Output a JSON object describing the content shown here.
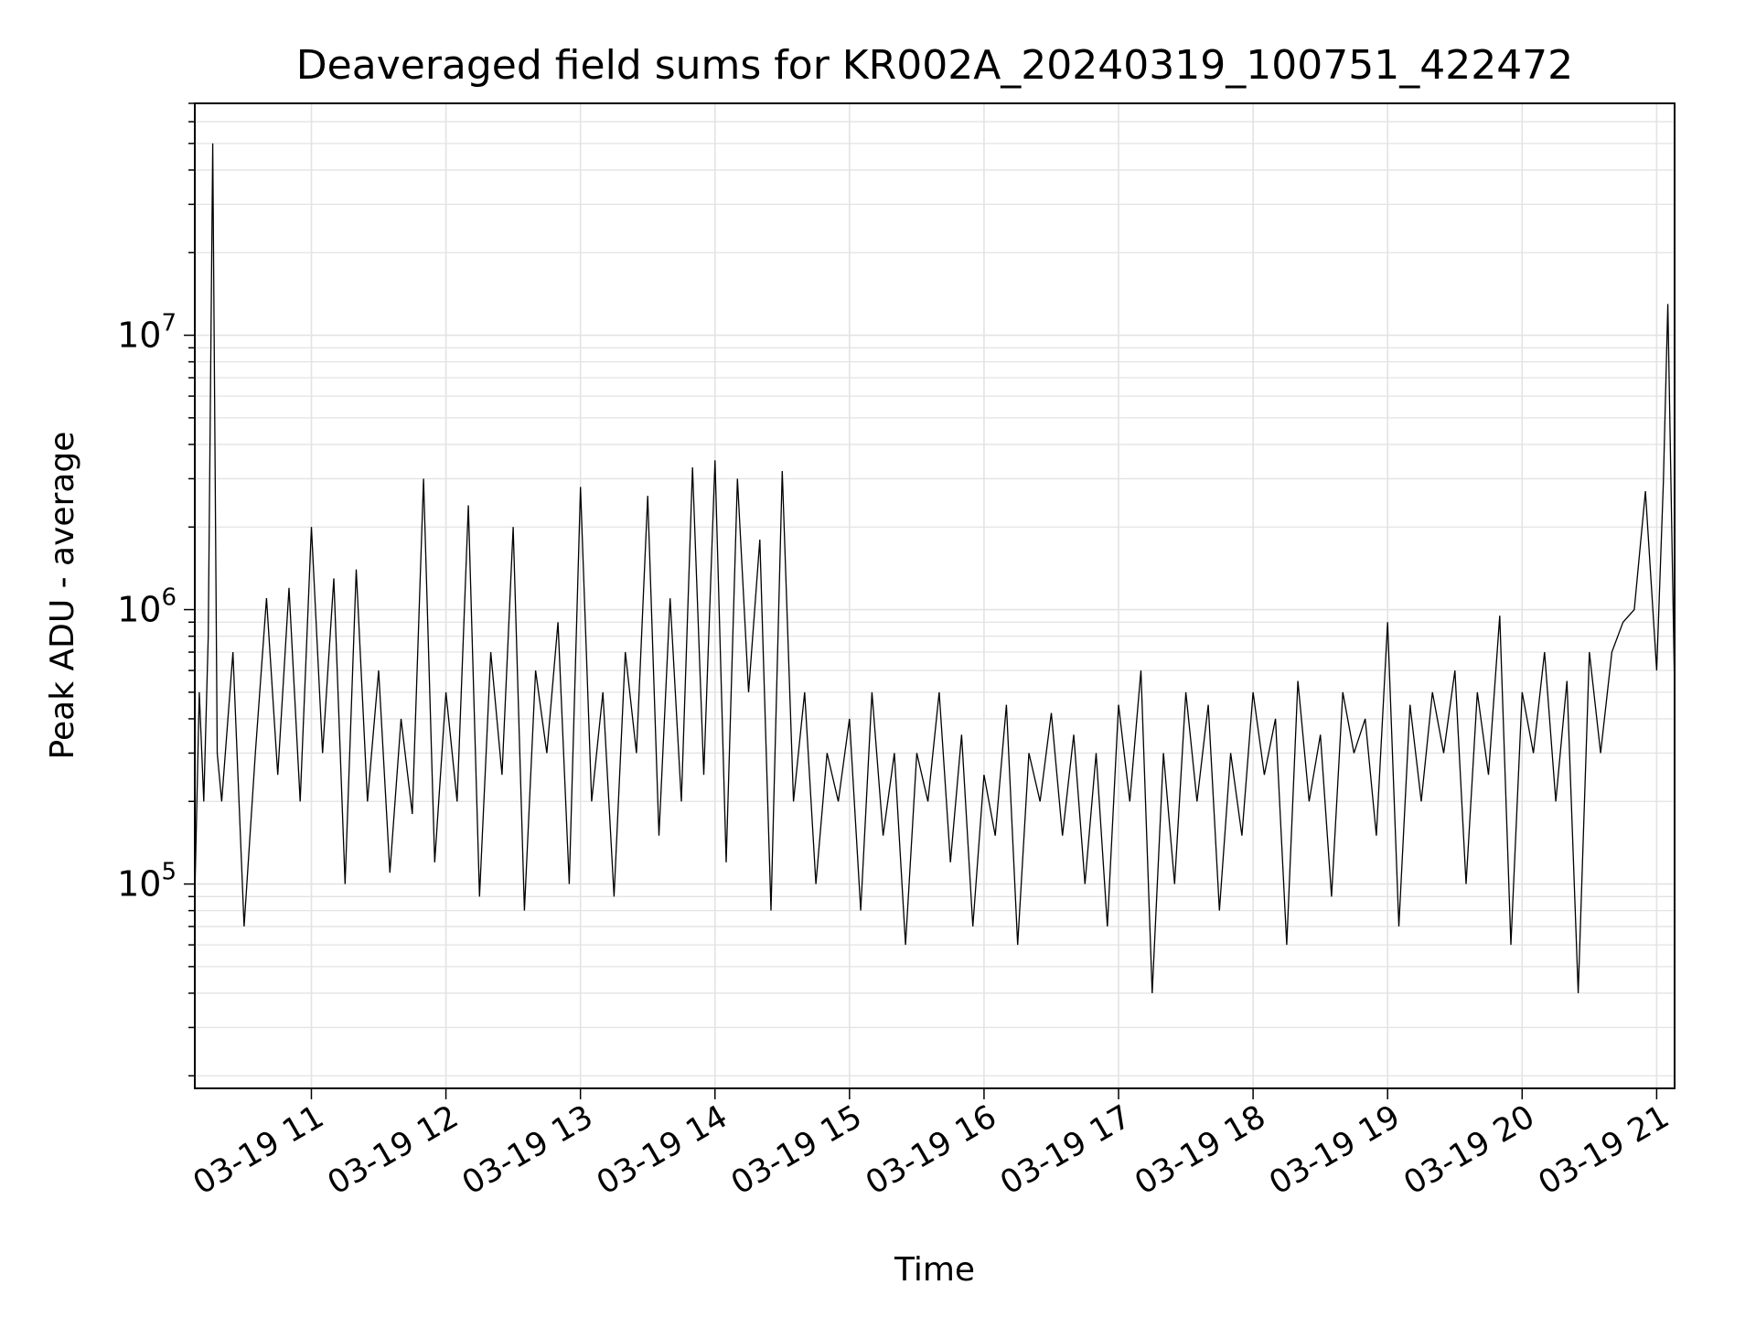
{
  "chart_data": {
    "type": "line",
    "title": "Deaveraged field sums for KR002A_20240319_100751_422472",
    "xlabel": "Time",
    "ylabel": "Peak ADU - average",
    "y_scale": "log",
    "x_range": [
      "2024-03-19 10:08",
      "2024-03-19 21:08"
    ],
    "ylim": [
      18000,
      70000000
    ],
    "grid": true,
    "line_color": "#000000",
    "x_tick_labels": [
      "03-19 11",
      "03-19 12",
      "03-19 13",
      "03-19 14",
      "03-19 15",
      "03-19 16",
      "03-19 17",
      "03-19 18",
      "03-19 19",
      "03-19 20",
      "03-19 21"
    ],
    "y_ticks": [
      {
        "value": 100000,
        "base": "10",
        "exp": "5"
      },
      {
        "value": 1000000,
        "base": "10",
        "exp": "6"
      },
      {
        "value": 10000000,
        "base": "10",
        "exp": "7"
      }
    ],
    "series": [
      {
        "x": [
          "10:08",
          "10:10",
          "10:12",
          "10:14",
          "10:16",
          "10:18",
          "10:20",
          "10:25",
          "10:30",
          "10:35",
          "10:40",
          "10:45",
          "10:50",
          "10:55",
          "11:00",
          "11:05",
          "11:10",
          "11:15",
          "11:20",
          "11:25",
          "11:30",
          "11:35",
          "11:40",
          "11:45",
          "11:50",
          "11:55",
          "12:00",
          "12:05",
          "12:10",
          "12:15",
          "12:20",
          "12:25",
          "12:30",
          "12:35",
          "12:40",
          "12:45",
          "12:50",
          "12:55",
          "13:00",
          "13:05",
          "13:10",
          "13:15",
          "13:20",
          "13:25",
          "13:30",
          "13:35",
          "13:40",
          "13:45",
          "13:50",
          "13:55",
          "14:00",
          "14:05",
          "14:10",
          "14:15",
          "14:20",
          "14:25",
          "14:30",
          "14:35",
          "14:40",
          "14:45",
          "14:50",
          "14:55",
          "15:00",
          "15:05",
          "15:10",
          "15:15",
          "15:20",
          "15:25",
          "15:30",
          "15:35",
          "15:40",
          "15:45",
          "15:50",
          "15:55",
          "16:00",
          "16:05",
          "16:10",
          "16:15",
          "16:20",
          "16:25",
          "16:30",
          "16:35",
          "16:40",
          "16:45",
          "16:50",
          "16:55",
          "17:00",
          "17:05",
          "17:10",
          "17:15",
          "17:20",
          "17:25",
          "17:30",
          "17:35",
          "17:40",
          "17:45",
          "17:50",
          "17:55",
          "18:00",
          "18:05",
          "18:10",
          "18:15",
          "18:20",
          "18:25",
          "18:30",
          "18:35",
          "18:40",
          "18:45",
          "18:50",
          "18:55",
          "19:00",
          "19:05",
          "19:10",
          "19:15",
          "19:20",
          "19:25",
          "19:30",
          "19:35",
          "19:40",
          "19:45",
          "19:50",
          "19:55",
          "20:00",
          "20:05",
          "20:10",
          "20:15",
          "20:20",
          "20:25",
          "20:30",
          "20:35",
          "20:40",
          "20:45",
          "20:50",
          "20:55",
          "21:00",
          "21:03",
          "21:05",
          "21:08"
        ],
        "y": [
          90000,
          500000,
          200000,
          800000,
          50000000,
          300000,
          200000,
          700000,
          70000,
          300000,
          1100000,
          250000,
          1200000,
          200000,
          2000000,
          300000,
          1300000,
          100000,
          1400000,
          200000,
          600000,
          110000,
          400000,
          180000,
          3000000,
          120000,
          500000,
          200000,
          2400000,
          90000,
          700000,
          250000,
          2000000,
          80000,
          600000,
          300000,
          900000,
          100000,
          2800000,
          200000,
          500000,
          90000,
          700000,
          300000,
          2600000,
          150000,
          1100000,
          200000,
          3300000,
          250000,
          3500000,
          120000,
          3000000,
          500000,
          1800000,
          80000,
          3200000,
          200000,
          500000,
          100000,
          300000,
          200000,
          400000,
          80000,
          500000,
          150000,
          300000,
          60000,
          300000,
          200000,
          500000,
          120000,
          350000,
          70000,
          250000,
          150000,
          450000,
          60000,
          300000,
          200000,
          420000,
          150000,
          350000,
          100000,
          300000,
          70000,
          450000,
          200000,
          600000,
          40000,
          300000,
          100000,
          500000,
          200000,
          450000,
          80000,
          300000,
          150000,
          500000,
          250000,
          400000,
          60000,
          550000,
          200000,
          350000,
          90000,
          500000,
          300000,
          400000,
          150000,
          900000,
          70000,
          450000,
          200000,
          500000,
          300000,
          600000,
          100000,
          500000,
          250000,
          950000,
          60000,
          500000,
          300000,
          700000,
          200000,
          550000,
          40000,
          700000,
          300000,
          700000,
          900000,
          1000000,
          2700000,
          600000,
          2900000,
          13000000,
          500000
        ]
      }
    ]
  }
}
